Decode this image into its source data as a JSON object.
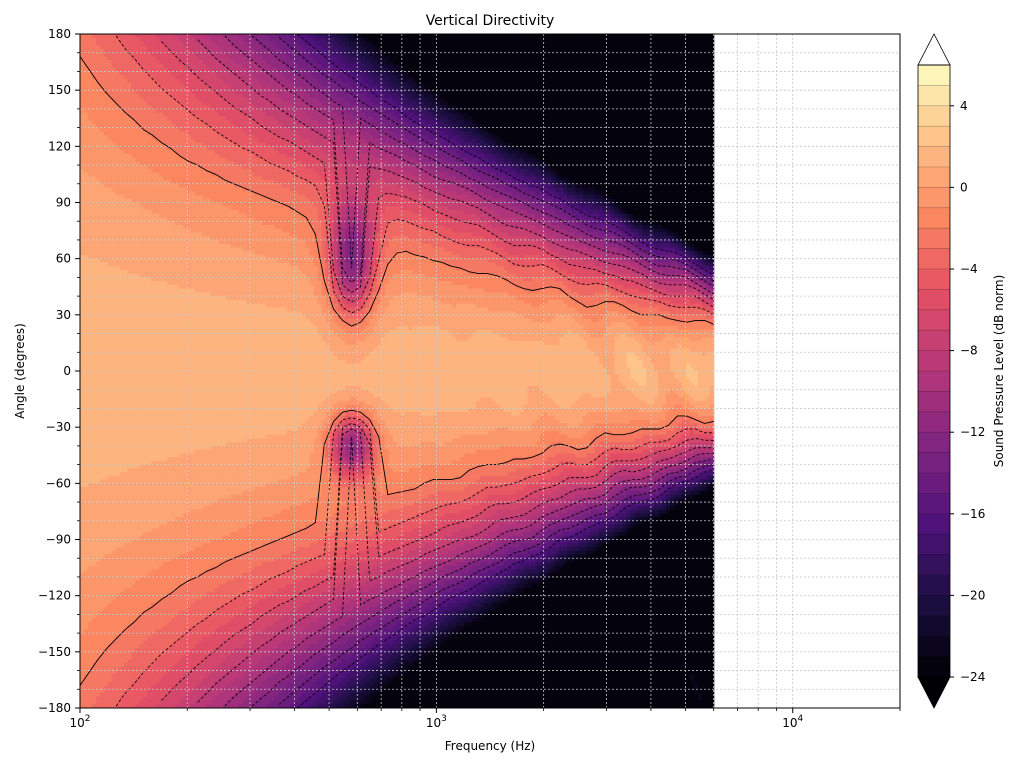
{
  "chart_data": {
    "type": "heatmap",
    "title": "Vertical Directivity",
    "xlabel": "Frequency (Hz)",
    "ylabel": "Angle (degrees)",
    "x_scale": "log",
    "xlim": [
      100,
      20000
    ],
    "ylim": [
      -180,
      180
    ],
    "x_data_range": [
      100,
      6000
    ],
    "x_ticks": [
      {
        "value": 100,
        "base": "10",
        "exp": "2"
      },
      {
        "value": 1000,
        "base": "10",
        "exp": "3"
      },
      {
        "value": 10000,
        "base": "10",
        "exp": "4"
      }
    ],
    "y_ticks": [
      180,
      150,
      120,
      90,
      60,
      30,
      0,
      -30,
      -60,
      -90,
      -120,
      -150,
      -180
    ],
    "grid": true,
    "colormap": "magma",
    "colorbar": {
      "label": "Sound Pressure Level (dB norm)",
      "min": -24,
      "max": 6,
      "extend": "both",
      "levels": [
        -24,
        -23,
        -22,
        -21,
        -20,
        -19,
        -18,
        -17,
        -16,
        -15,
        -14,
        -13,
        -12,
        -11,
        -10,
        -9,
        -8,
        -7,
        -6,
        -5,
        -4,
        -3,
        -2,
        -1,
        0,
        1,
        2,
        3,
        4,
        5,
        6
      ],
      "ticks": [
        4,
        0,
        -4,
        -8,
        -12,
        -16,
        -20,
        -24
      ]
    },
    "directivity_model": {
      "beam_width_at_100hz_deg": 100,
      "null_frequency_hz": 580,
      "null_upper_angle_deg": 60,
      "null_lower_angle_deg": -40,
      "rear_attenuation_db": -24
    }
  }
}
